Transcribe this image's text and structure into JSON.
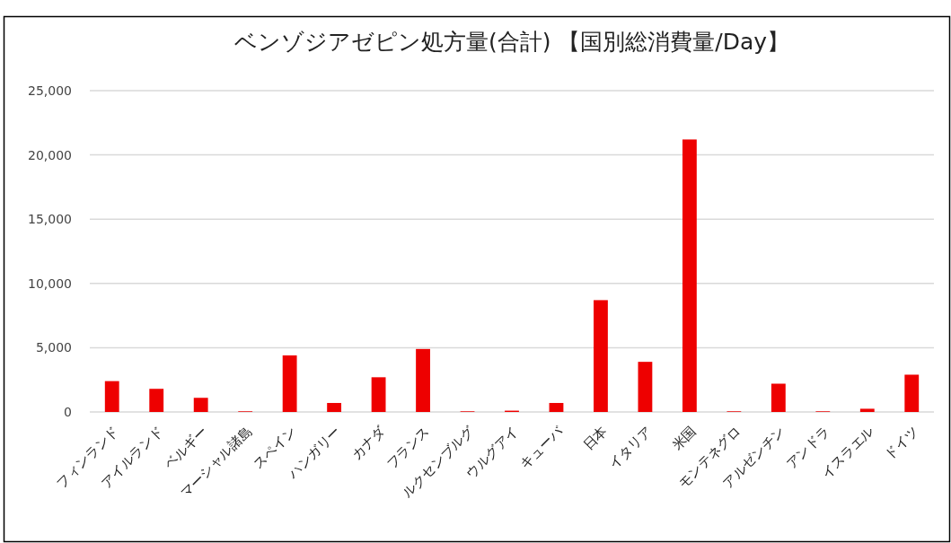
{
  "chart_data": {
    "type": "bar",
    "title": "ベンゾジアゼピン処方量(合計) 【国別総消費量/Day】",
    "categories": [
      "フィンランド",
      "アイルランド",
      "ベルギー",
      "マーシャル諸島",
      "スペイン",
      "ハンガリー",
      "カナダ",
      "フランス",
      "ルクセンブルグ",
      "ウルグアイ",
      "キューバ",
      "日本",
      "イタリア",
      "米国",
      "モンテネグロ",
      "アルゼンチン",
      "アンドラ",
      "イスラエル",
      "ドイツ"
    ],
    "values": [
      2400,
      1800,
      1100,
      50,
      4400,
      700,
      2700,
      4900,
      50,
      100,
      700,
      8700,
      3900,
      21200,
      50,
      2200,
      50,
      250,
      2900
    ],
    "color": "#ee0000",
    "ylim": [
      0,
      25000
    ],
    "yticks": [
      {
        "value": 0,
        "label": "0"
      },
      {
        "value": 5000,
        "label": "5,000"
      },
      {
        "value": 10000,
        "label": "10,000"
      },
      {
        "value": 15000,
        "label": "15,000"
      },
      {
        "value": 20000,
        "label": "20,000"
      },
      {
        "value": 25000,
        "label": "25,000"
      }
    ],
    "grid": "y"
  }
}
